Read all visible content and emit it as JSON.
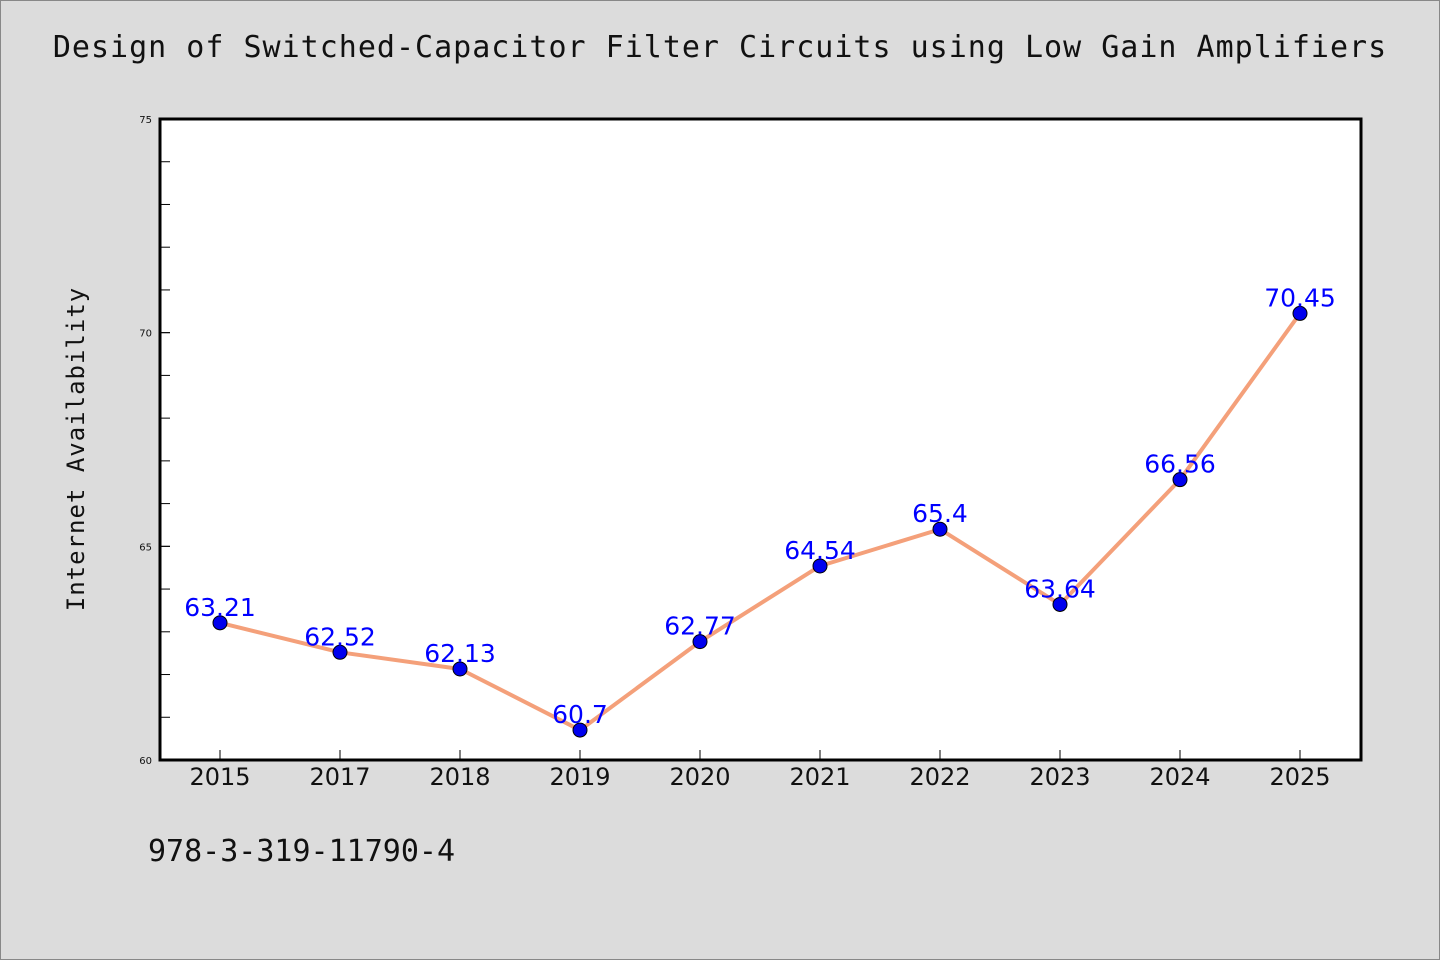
{
  "chart_data": {
    "type": "line",
    "title": "Design of Switched-Capacitor Filter Circuits using Low Gain Amplifiers",
    "xlabel": "",
    "ylabel": "Internet Availability",
    "categories": [
      "2015",
      "2017",
      "2018",
      "2019",
      "2020",
      "2021",
      "2022",
      "2023",
      "2024",
      "2025"
    ],
    "series": [
      {
        "values": [
          63.21,
          62.52,
          62.13,
          60.7,
          62.77,
          64.54,
          65.4,
          63.64,
          66.56,
          70.45
        ],
        "data_labels": [
          "63.21",
          "62.52",
          "62.13",
          "60.7",
          "62.77",
          "64.54",
          "65.4",
          "63.64",
          "66.56",
          "70.45"
        ],
        "line_color": "#f4a07a",
        "marker_color": "#0000ee"
      }
    ],
    "ylim": [
      60,
      75
    ],
    "yticks": [
      "60",
      "65",
      "70",
      "75"
    ],
    "grid": false,
    "legend": "none"
  },
  "footer_text": "978-3-319-11790-4",
  "colors": {
    "background": "#dcdcdc",
    "plot_background": "#ffffff",
    "data_label": "#0000ff"
  }
}
